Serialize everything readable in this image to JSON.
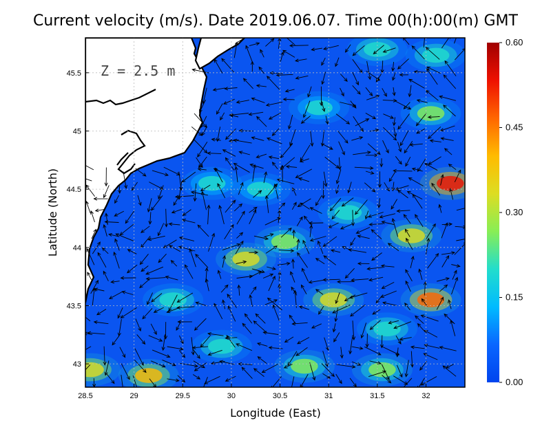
{
  "title": "Current velocity (m/s). Date 2019.06.07. Time 00(h):00(m) GMT",
  "depth_label": "Z = 2.5 m",
  "chart_data": {
    "type": "heatmap",
    "title": "Current velocity (m/s). Date 2019.06.07. Time 00(h):00(m) GMT",
    "xlabel": "Longitude (East)",
    "ylabel": "Latitude (North)",
    "xlim": [
      28.5,
      32.4
    ],
    "ylim": [
      42.8,
      45.8
    ],
    "x_ticks": [
      "28.5",
      "29",
      "29.5",
      "30",
      "30.5",
      "31",
      "31.5",
      "32"
    ],
    "x_tick_values": [
      28.5,
      29,
      29.5,
      30,
      30.5,
      31,
      31.5,
      32
    ],
    "y_ticks": [
      "43",
      "43.5",
      "44",
      "44.5",
      "45",
      "45.5"
    ],
    "y_tick_values": [
      43,
      43.5,
      44,
      44.5,
      45,
      45.5
    ],
    "grid": true,
    "colorbar": {
      "range": [
        0.0,
        0.6
      ],
      "ticks": [
        "0.00",
        "0.15",
        "0.30",
        "0.45",
        "0.60"
      ],
      "tick_values": [
        0.0,
        0.15,
        0.3,
        0.45,
        0.6
      ],
      "colors": [
        "#0044ee",
        "#0a66ff",
        "#00bbff",
        "#22ddcc",
        "#88ee55",
        "#dddd22",
        "#ffbb00",
        "#ff6600",
        "#ee1100",
        "#a00000"
      ]
    },
    "hotspots": [
      {
        "lon": 32.25,
        "lat": 44.55,
        "value": 0.55
      },
      {
        "lon": 32.05,
        "lat": 43.55,
        "value": 0.45
      },
      {
        "lon": 31.85,
        "lat": 44.1,
        "value": 0.33
      },
      {
        "lon": 30.15,
        "lat": 43.9,
        "value": 0.32
      },
      {
        "lon": 30.55,
        "lat": 44.05,
        "value": 0.28
      },
      {
        "lon": 31.05,
        "lat": 43.55,
        "value": 0.3
      },
      {
        "lon": 29.15,
        "lat": 42.9,
        "value": 0.38
      },
      {
        "lon": 28.55,
        "lat": 42.95,
        "value": 0.33
      },
      {
        "lon": 32.05,
        "lat": 45.15,
        "value": 0.25
      },
      {
        "lon": 31.55,
        "lat": 42.95,
        "value": 0.28
      },
      {
        "lon": 30.75,
        "lat": 42.98,
        "value": 0.26
      },
      {
        "lon": 31.5,
        "lat": 45.7,
        "value": 0.2
      },
      {
        "lon": 32.1,
        "lat": 45.65,
        "value": 0.22
      },
      {
        "lon": 29.4,
        "lat": 43.55,
        "value": 0.2
      },
      {
        "lon": 30.3,
        "lat": 44.5,
        "value": 0.18
      },
      {
        "lon": 31.2,
        "lat": 44.3,
        "value": 0.2
      },
      {
        "lon": 29.8,
        "lat": 44.55,
        "value": 0.17
      },
      {
        "lon": 30.9,
        "lat": 45.2,
        "value": 0.17
      },
      {
        "lon": 31.6,
        "lat": 43.3,
        "value": 0.22
      },
      {
        "lon": 29.9,
        "lat": 43.15,
        "value": 0.22
      }
    ]
  }
}
